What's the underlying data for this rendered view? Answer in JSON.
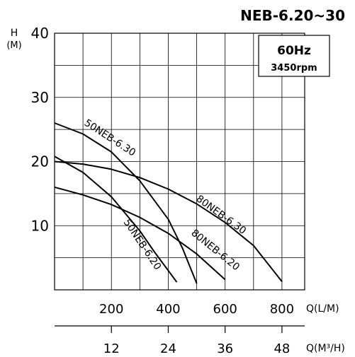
{
  "title": "NEB-6.20~30",
  "info_box": {
    "frequency": "60Hz",
    "speed": "3450rpm"
  },
  "y_axis": {
    "label": "H",
    "unit": "(M)"
  },
  "x_axis": {
    "label": "Q(L/M)"
  },
  "x_axis2": {
    "label": "Q(M³/H)"
  },
  "chart_data": {
    "type": "line",
    "title": "NEB-6.20~30",
    "xlabel": "Q(L/M)",
    "ylabel": "H (M)",
    "xlim": [
      0,
      880
    ],
    "ylim": [
      0,
      40
    ],
    "x_ticks": [
      200,
      400,
      600,
      800
    ],
    "y_ticks": [
      10,
      20,
      30,
      40
    ],
    "secondary_x": {
      "label": "Q(M³/H)",
      "ticks": [
        12,
        24,
        36,
        48
      ]
    },
    "grid": true,
    "series": [
      {
        "name": "50NEB-6.30",
        "points": [
          [
            0,
            26
          ],
          [
            100,
            24.3
          ],
          [
            200,
            21.5
          ],
          [
            300,
            17
          ],
          [
            400,
            11
          ],
          [
            450,
            6.5
          ],
          [
            500,
            1
          ]
        ]
      },
      {
        "name": "50NEB-6.20",
        "points": [
          [
            0,
            20.8
          ],
          [
            100,
            18.3
          ],
          [
            200,
            14.5
          ],
          [
            300,
            9.2
          ],
          [
            350,
            6
          ],
          [
            400,
            3
          ],
          [
            430,
            1.2
          ]
        ]
      },
      {
        "name": "80NEB-6.30",
        "points": [
          [
            0,
            20
          ],
          [
            100,
            19.6
          ],
          [
            200,
            18.8
          ],
          [
            300,
            17.5
          ],
          [
            400,
            15.7
          ],
          [
            500,
            13.4
          ],
          [
            600,
            10.5
          ],
          [
            700,
            6.9
          ],
          [
            800,
            1.3
          ]
        ]
      },
      {
        "name": "80NEB-6.20",
        "points": [
          [
            0,
            16
          ],
          [
            100,
            14.8
          ],
          [
            200,
            13.3
          ],
          [
            300,
            11.3
          ],
          [
            400,
            8.8
          ],
          [
            500,
            5.6
          ],
          [
            600,
            1.6
          ]
        ]
      }
    ],
    "series_labels": [
      "50NEB-6.30",
      "50NEB-6.20",
      "80NEB-6.30",
      "80NEB-6.20"
    ]
  }
}
